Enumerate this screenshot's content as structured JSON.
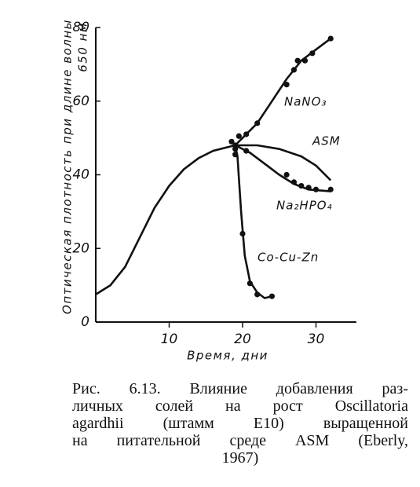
{
  "chart_data": {
    "type": "line",
    "ylabel": [
      "Оптическая плотность при длине волны",
      "650 нм"
    ],
    "xlabel": "Время, дни",
    "xlim": [
      0,
      35.5
    ],
    "ylim": [
      0,
      80
    ],
    "xticks": [
      10,
      20,
      30
    ],
    "yticks": [
      0,
      20,
      40,
      60,
      80
    ],
    "color": "#111",
    "series": [
      {
        "name": "NaNO₃",
        "x": [
          19,
          20,
          22,
          24,
          26,
          28,
          30,
          32
        ],
        "values": [
          48,
          50,
          54,
          60,
          66,
          71,
          74,
          77
        ],
        "points": {
          "x": [
            18.5,
            19.5,
            20.5,
            22,
            26,
            27,
            27.5,
            28.5,
            29.5,
            32
          ],
          "y": [
            49,
            50.5,
            51,
            54,
            64.5,
            68.5,
            71,
            71,
            73,
            77
          ]
        }
      },
      {
        "name": "ASM",
        "x": [
          0,
          2,
          4,
          6,
          8,
          10,
          12,
          14,
          16,
          18,
          19,
          22,
          25,
          28,
          30,
          32
        ],
        "values": [
          7.5,
          10,
          15,
          23,
          31,
          37,
          41.5,
          44.5,
          46.5,
          47.5,
          48,
          48,
          47,
          45,
          42.5,
          38.5
        ]
      },
      {
        "name": "Na₂HPO₄",
        "x": [
          19,
          21,
          23,
          25,
          27,
          29,
          32
        ],
        "values": [
          48,
          46,
          43,
          40,
          37.5,
          36,
          35.5
        ],
        "points": {
          "x": [
            19,
            20.5,
            26,
            27,
            28,
            29,
            30,
            32
          ],
          "y": [
            48,
            46.5,
            40,
            38,
            37,
            36.5,
            36,
            36
          ]
        }
      },
      {
        "name": "Co-Cu-Zn",
        "x": [
          19,
          19.3,
          19.8,
          20.3,
          21,
          22,
          23,
          24
        ],
        "values": [
          48,
          45,
          30,
          18,
          11,
          8,
          6.5,
          7
        ],
        "points": {
          "x": [
            19,
            19,
            20,
            21,
            22,
            24
          ],
          "y": [
            47,
            45.5,
            24,
            10.5,
            7.5,
            7
          ]
        }
      }
    ]
  },
  "caption": [
    "Рис. 6.13. Влияние добавления раз-",
    "личных солей на рост Oscillatoria",
    "agardhii (штамм E10) выращенной",
    "на питательной среде ASM (Eberly,",
    "1967)"
  ]
}
